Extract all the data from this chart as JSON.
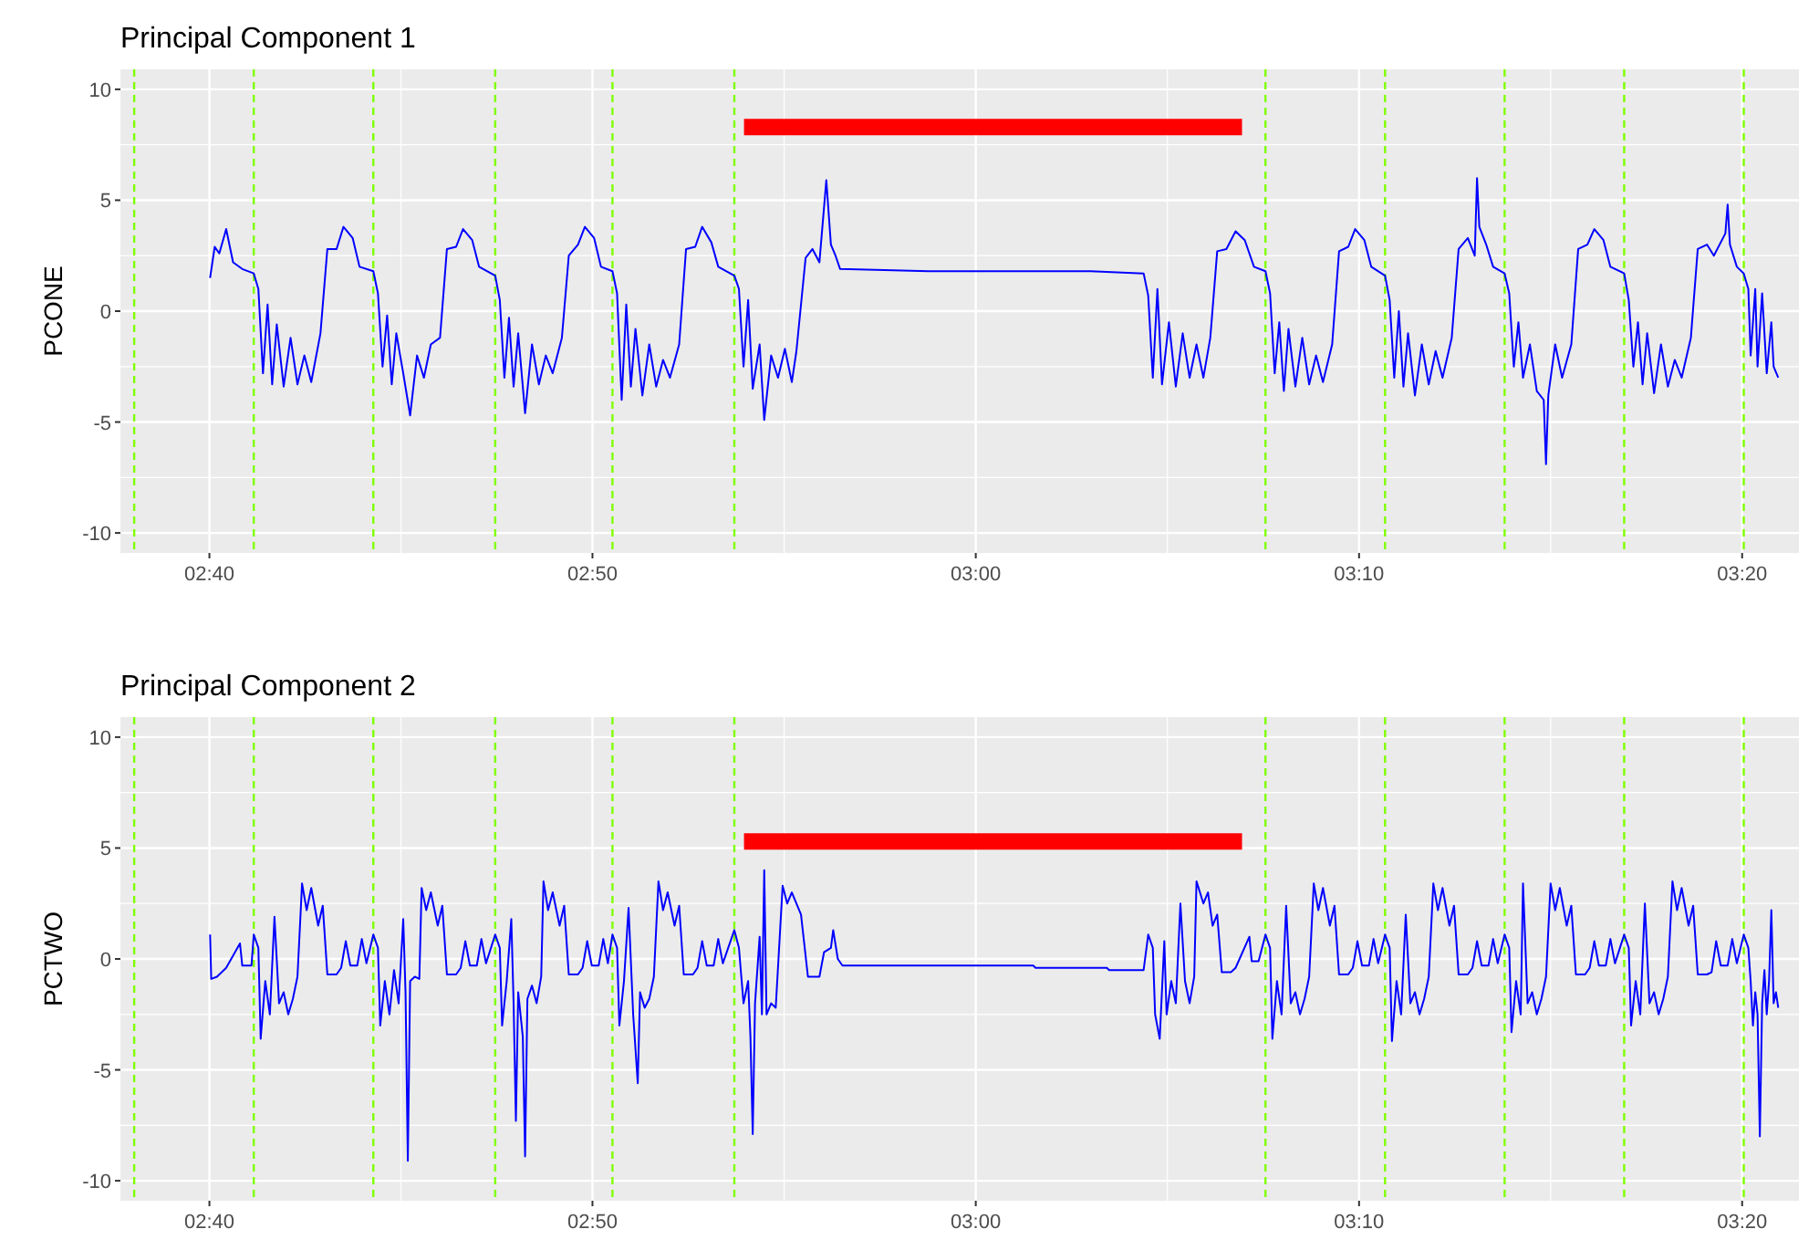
{
  "chart_data": [
    {
      "type": "line",
      "title": "Principal Component 1",
      "ylabel": "PCONE",
      "xlim": [
        2.628,
        3.358
      ],
      "ylim": [
        -10.9,
        10.9
      ],
      "xticks": [
        {
          "value": 2.6667,
          "label": "02:40"
        },
        {
          "value": 2.8333,
          "label": "02:50"
        },
        {
          "value": 3,
          "label": "03:00"
        },
        {
          "value": 3.1667,
          "label": "03:10"
        },
        {
          "value": 3.3333,
          "label": "03:20"
        }
      ],
      "yticks": [
        -10,
        -5,
        0,
        5,
        10
      ],
      "grid": true,
      "ref_lines": [
        {
          "axis": "x",
          "value": 2.634,
          "color": "#7fff00",
          "line_style": "dashed"
        },
        {
          "axis": "x",
          "value": 2.686,
          "color": "#7fff00",
          "line_style": "dashed"
        },
        {
          "axis": "x",
          "value": 2.738,
          "color": "#7fff00",
          "line_style": "dashed"
        },
        {
          "axis": "x",
          "value": 2.791,
          "color": "#7fff00",
          "line_style": "dashed"
        },
        {
          "axis": "x",
          "value": 2.842,
          "color": "#7fff00",
          "line_style": "dashed"
        },
        {
          "axis": "x",
          "value": 2.895,
          "color": "#7fff00",
          "line_style": "dashed"
        },
        {
          "axis": "x",
          "value": 3.126,
          "color": "#7fff00",
          "line_style": "dashed"
        },
        {
          "axis": "x",
          "value": 3.178,
          "color": "#7fff00",
          "line_style": "dashed"
        },
        {
          "axis": "x",
          "value": 3.23,
          "color": "#7fff00",
          "line_style": "dashed"
        },
        {
          "axis": "x",
          "value": 3.282,
          "color": "#7fff00",
          "line_style": "dashed"
        },
        {
          "axis": "x",
          "value": 3.334,
          "color": "#7fff00",
          "line_style": "dashed"
        }
      ],
      "series": [
        {
          "type": "line",
          "color": "#0000ff",
          "x": [
            2.667,
            2.669,
            2.671,
            2.674,
            2.677,
            2.681,
            2.686,
            2.688,
            2.69,
            2.692,
            2.694,
            2.696,
            2.699,
            2.702,
            2.705,
            2.708,
            2.711,
            2.715,
            2.718,
            2.722,
            2.725,
            2.729,
            2.732,
            2.738,
            2.74,
            2.742,
            2.744,
            2.746,
            2.748,
            2.751,
            2.754,
            2.757,
            2.76,
            2.763,
            2.767,
            2.77,
            2.774,
            2.777,
            2.781,
            2.784,
            2.791,
            2.793,
            2.795,
            2.797,
            2.799,
            2.801,
            2.804,
            2.807,
            2.81,
            2.813,
            2.816,
            2.82,
            2.823,
            2.827,
            2.83,
            2.834,
            2.837,
            2.842,
            2.844,
            2.846,
            2.848,
            2.85,
            2.852,
            2.855,
            2.858,
            2.861,
            2.864,
            2.867,
            2.871,
            2.874,
            2.878,
            2.881,
            2.885,
            2.888,
            2.895,
            2.897,
            2.899,
            2.901,
            2.903,
            2.906,
            2.908,
            2.911,
            2.914,
            2.917,
            2.92,
            2.922,
            2.926,
            2.929,
            2.932,
            2.935,
            2.937,
            2.939,
            2.941,
            2.98,
            3.02,
            3.05,
            3.073,
            3.075,
            3.077,
            3.079,
            3.081,
            3.084,
            3.087,
            3.09,
            3.093,
            3.096,
            3.099,
            3.102,
            3.105,
            3.109,
            3.113,
            3.117,
            3.121,
            3.126,
            3.128,
            3.13,
            3.132,
            3.134,
            3.136,
            3.139,
            3.142,
            3.145,
            3.148,
            3.151,
            3.155,
            3.158,
            3.162,
            3.165,
            3.169,
            3.172,
            3.178,
            3.18,
            3.182,
            3.184,
            3.186,
            3.188,
            3.191,
            3.194,
            3.197,
            3.2,
            3.203,
            3.207,
            3.21,
            3.214,
            3.217,
            3.218,
            3.219,
            3.222,
            3.225,
            3.23,
            3.232,
            3.234,
            3.236,
            3.238,
            3.241,
            3.244,
            3.247,
            3.248,
            3.249,
            3.252,
            3.255,
            3.259,
            3.262,
            3.266,
            3.269,
            3.273,
            3.276,
            3.282,
            3.284,
            3.286,
            3.288,
            3.29,
            3.292,
            3.295,
            3.298,
            3.301,
            3.304,
            3.307,
            3.311,
            3.314,
            3.318,
            3.321,
            3.326,
            3.327,
            3.328,
            3.331,
            3.334,
            3.336,
            3.337,
            3.339,
            3.34,
            3.342,
            3.344,
            3.346,
            3.347,
            3.349
          ],
          "values": [
            1.5,
            2.9,
            2.6,
            3.7,
            2.2,
            1.9,
            1.7,
            1.0,
            -2.8,
            0.3,
            -3.3,
            -0.6,
            -3.4,
            -1.2,
            -3.3,
            -2.0,
            -3.2,
            -1.0,
            2.8,
            2.8,
            3.8,
            3.3,
            2.0,
            1.8,
            0.8,
            -2.5,
            -0.2,
            -3.3,
            -1.0,
            -2.8,
            -4.7,
            -2.0,
            -3.0,
            -1.5,
            -1.2,
            2.8,
            2.9,
            3.7,
            3.2,
            2.0,
            1.6,
            0.5,
            -3.0,
            -0.3,
            -3.4,
            -1.0,
            -4.6,
            -1.5,
            -3.3,
            -2.0,
            -2.8,
            -1.2,
            2.5,
            3.0,
            3.8,
            3.3,
            2.0,
            1.8,
            0.8,
            -4.0,
            0.3,
            -3.4,
            -0.8,
            -3.8,
            -1.5,
            -3.4,
            -2.2,
            -3.0,
            -1.5,
            2.8,
            2.9,
            3.8,
            3.1,
            2.0,
            1.6,
            1.0,
            -2.5,
            0.5,
            -3.5,
            -1.5,
            -4.9,
            -2.0,
            -3.0,
            -1.7,
            -3.2,
            -1.8,
            2.4,
            2.8,
            2.2,
            5.9,
            3.0,
            2.5,
            1.9,
            1.8,
            1.8,
            1.8,
            1.7,
            0.7,
            -3.0,
            1.0,
            -3.3,
            -0.5,
            -3.4,
            -1.0,
            -3.0,
            -1.5,
            -3.0,
            -1.2,
            2.7,
            2.8,
            3.6,
            3.2,
            2.0,
            1.8,
            0.8,
            -2.8,
            -0.5,
            -3.6,
            -0.8,
            -3.4,
            -1.2,
            -3.3,
            -2.0,
            -3.2,
            -1.5,
            2.7,
            2.9,
            3.7,
            3.2,
            2.0,
            1.6,
            0.5,
            -3.0,
            0.0,
            -3.4,
            -1.0,
            -3.8,
            -1.5,
            -3.3,
            -1.8,
            -3.0,
            -1.2,
            2.8,
            3.3,
            2.5,
            6.0,
            3.8,
            3.0,
            2.0,
            1.7,
            0.8,
            -2.5,
            -0.5,
            -3.0,
            -1.5,
            -3.6,
            -4.0,
            -6.9,
            -3.8,
            -1.5,
            -3.0,
            -1.5,
            2.8,
            3.0,
            3.7,
            3.2,
            2.0,
            1.7,
            0.5,
            -2.5,
            -0.5,
            -3.3,
            -1.0,
            -3.7,
            -1.5,
            -3.4,
            -2.2,
            -3.0,
            -1.2,
            2.8,
            3.0,
            2.5,
            3.5,
            4.8,
            3.0,
            2.0,
            1.7,
            1.0,
            -2.0,
            1.0,
            -2.5,
            0.8,
            -2.8,
            -0.5,
            -2.5,
            -3.0
          ]
        },
        {
          "type": "line",
          "color": "#ff0000",
          "x": [
            2.8992,
            3.1158
          ],
          "values": [
            8.3,
            8.3
          ]
        }
      ]
    },
    {
      "type": "line",
      "title": "Principal Component 2",
      "ylabel": "PCTWO",
      "xlim": [
        2.628,
        3.358
      ],
      "ylim": [
        -10.9,
        10.9
      ],
      "xticks": [
        {
          "value": 2.6667,
          "label": "02:40"
        },
        {
          "value": 2.8333,
          "label": "02:50"
        },
        {
          "value": 3,
          "label": "03:00"
        },
        {
          "value": 3.1667,
          "label": "03:10"
        },
        {
          "value": 3.3333,
          "label": "03:20"
        }
      ],
      "yticks": [
        -10,
        -5,
        0,
        5,
        10
      ],
      "grid": true,
      "ref_lines": [
        {
          "axis": "x",
          "value": 2.634,
          "color": "#7fff00",
          "line_style": "dashed"
        },
        {
          "axis": "x",
          "value": 2.686,
          "color": "#7fff00",
          "line_style": "dashed"
        },
        {
          "axis": "x",
          "value": 2.738,
          "color": "#7fff00",
          "line_style": "dashed"
        },
        {
          "axis": "x",
          "value": 2.791,
          "color": "#7fff00",
          "line_style": "dashed"
        },
        {
          "axis": "x",
          "value": 2.842,
          "color": "#7fff00",
          "line_style": "dashed"
        },
        {
          "axis": "x",
          "value": 2.895,
          "color": "#7fff00",
          "line_style": "dashed"
        },
        {
          "axis": "x",
          "value": 3.126,
          "color": "#7fff00",
          "line_style": "dashed"
        },
        {
          "axis": "x",
          "value": 3.178,
          "color": "#7fff00",
          "line_style": "dashed"
        },
        {
          "axis": "x",
          "value": 3.23,
          "color": "#7fff00",
          "line_style": "dashed"
        },
        {
          "axis": "x",
          "value": 3.282,
          "color": "#7fff00",
          "line_style": "dashed"
        },
        {
          "axis": "x",
          "value": 3.334,
          "color": "#7fff00",
          "line_style": "dashed"
        }
      ],
      "series": [
        {
          "type": "line",
          "color": "#0000ff",
          "x": [
            2.667,
            2.6675,
            2.67,
            2.674,
            2.68,
            2.681,
            2.685,
            2.686,
            2.688,
            2.689,
            2.691,
            2.693,
            2.695,
            2.697,
            2.699,
            2.701,
            2.703,
            2.705,
            2.707,
            2.709,
            2.711,
            2.714,
            2.716,
            2.718,
            2.722,
            2.724,
            2.726,
            2.728,
            2.731,
            2.733,
            2.735,
            2.738,
            2.74,
            2.741,
            2.743,
            2.745,
            2.747,
            2.749,
            2.751,
            2.752,
            2.753,
            2.754,
            2.756,
            2.758,
            2.759,
            2.761,
            2.763,
            2.766,
            2.768,
            2.77,
            2.774,
            2.776,
            2.778,
            2.78,
            2.783,
            2.785,
            2.787,
            2.791,
            2.793,
            2.794,
            2.796,
            2.798,
            2.799,
            2.8,
            2.801,
            2.803,
            2.804,
            2.805,
            2.807,
            2.809,
            2.811,
            2.812,
            2.814,
            2.816,
            2.819,
            2.821,
            2.823,
            2.827,
            2.829,
            2.831,
            2.833,
            2.836,
            2.838,
            2.84,
            2.842,
            2.844,
            2.845,
            2.847,
            2.849,
            2.851,
            2.853,
            2.854,
            2.856,
            2.858,
            2.86,
            2.862,
            2.864,
            2.866,
            2.869,
            2.871,
            2.873,
            2.877,
            2.879,
            2.881,
            2.883,
            2.886,
            2.888,
            2.89,
            2.895,
            2.897,
            2.899,
            2.901,
            2.902,
            2.903,
            2.904,
            2.906,
            2.907,
            2.908,
            2.909,
            2.911,
            2.913,
            2.916,
            2.918,
            2.92,
            2.924,
            2.927,
            2.932,
            2.934,
            2.937,
            2.938,
            2.94,
            2.942,
            2.99,
            3.025,
            3.026,
            3.057,
            3.058,
            3.073,
            3.075,
            3.077,
            3.078,
            3.08,
            3.082,
            3.083,
            3.085,
            3.087,
            3.089,
            3.091,
            3.093,
            3.095,
            3.096,
            3.099,
            3.101,
            3.103,
            3.105,
            3.107,
            3.111,
            3.113,
            3.119,
            3.12,
            3.123,
            3.126,
            3.128,
            3.129,
            3.131,
            3.133,
            3.135,
            3.137,
            3.139,
            3.141,
            3.143,
            3.145,
            3.147,
            3.149,
            3.151,
            3.154,
            3.156,
            3.158,
            3.162,
            3.164,
            3.166,
            3.168,
            3.171,
            3.173,
            3.175,
            3.178,
            3.18,
            3.181,
            3.183,
            3.185,
            3.187,
            3.189,
            3.191,
            3.193,
            3.195,
            3.197,
            3.199,
            3.201,
            3.203,
            3.206,
            3.208,
            3.21,
            3.214,
            3.216,
            3.218,
            3.22,
            3.223,
            3.225,
            3.227,
            3.23,
            3.232,
            3.233,
            3.235,
            3.237,
            3.238,
            3.24,
            3.242,
            3.244,
            3.246,
            3.248,
            3.25,
            3.252,
            3.254,
            3.257,
            3.259,
            3.261,
            3.265,
            3.267,
            3.269,
            3.271,
            3.274,
            3.276,
            3.278,
            3.282,
            3.284,
            3.285,
            3.287,
            3.289,
            3.291,
            3.293,
            3.295,
            3.297,
            3.299,
            3.301,
            3.303,
            3.305,
            3.307,
            3.31,
            3.312,
            3.314,
            3.318,
            3.32,
            3.322,
            3.324,
            3.327,
            3.329,
            3.331,
            3.334,
            3.336,
            3.337,
            3.338,
            3.339,
            3.34,
            3.341,
            3.342,
            3.343,
            3.344,
            3.345,
            3.346,
            3.347,
            3.348,
            3.349
          ],
          "values": [
            1.1,
            -0.9,
            -0.8,
            -0.4,
            0.7,
            -0.3,
            -0.3,
            1.1,
            0.5,
            -3.6,
            -1.0,
            -2.5,
            1.9,
            -2.0,
            -1.5,
            -2.5,
            -1.8,
            -0.8,
            3.4,
            2.2,
            3.2,
            1.5,
            2.4,
            -0.7,
            -0.7,
            -0.4,
            0.8,
            -0.3,
            -0.3,
            0.9,
            -0.2,
            1.1,
            0.5,
            -3.0,
            -1.0,
            -2.5,
            -0.5,
            -2.0,
            1.8,
            -1.5,
            -9.1,
            -1.0,
            -0.8,
            -0.9,
            3.2,
            2.2,
            3.0,
            1.5,
            2.4,
            -0.7,
            -0.7,
            -0.4,
            0.8,
            -0.3,
            -0.3,
            0.9,
            -0.2,
            1.1,
            0.5,
            -3.0,
            -1.0,
            1.8,
            -2.0,
            -7.3,
            -1.5,
            -3.5,
            -8.9,
            -1.8,
            -1.2,
            -2.0,
            -0.8,
            3.5,
            2.2,
            3.0,
            1.5,
            2.4,
            -0.7,
            -0.7,
            -0.4,
            0.8,
            -0.3,
            -0.3,
            0.9,
            -0.2,
            1.1,
            0.5,
            -3.0,
            -1.0,
            2.3,
            -2.5,
            -5.6,
            -1.5,
            -2.2,
            -1.8,
            -0.8,
            3.5,
            2.2,
            3.0,
            1.5,
            2.4,
            -0.7,
            -0.7,
            -0.4,
            0.8,
            -0.3,
            -0.3,
            0.9,
            -0.2,
            1.3,
            0.5,
            -2.0,
            -1.0,
            -3.5,
            -7.9,
            -2.0,
            1.0,
            -2.5,
            4.0,
            -2.5,
            -2.0,
            -2.2,
            3.3,
            2.5,
            3.0,
            2.0,
            -0.8,
            -0.8,
            0.3,
            0.5,
            1.3,
            0.0,
            -0.3,
            -0.3,
            -0.3,
            -0.4,
            -0.4,
            -0.5,
            -0.5,
            1.1,
            0.5,
            -2.5,
            -3.6,
            0.8,
            -2.5,
            -1.0,
            -2.0,
            2.5,
            -1.0,
            -2.0,
            -0.8,
            3.5,
            2.5,
            3.0,
            1.5,
            2.0,
            -0.6,
            -0.6,
            -0.4,
            1.0,
            -0.1,
            -0.1,
            1.1,
            0.5,
            -3.6,
            -1.0,
            -2.5,
            2.4,
            -2.0,
            -1.5,
            -2.5,
            -1.8,
            -0.8,
            3.4,
            2.2,
            3.2,
            1.5,
            2.4,
            -0.7,
            -0.7,
            -0.4,
            0.8,
            -0.3,
            -0.3,
            0.9,
            -0.2,
            1.1,
            0.5,
            -3.7,
            -1.0,
            -2.5,
            2.0,
            -2.0,
            -1.5,
            -2.5,
            -1.8,
            -0.8,
            3.4,
            2.2,
            3.2,
            1.5,
            2.4,
            -0.7,
            -0.7,
            -0.4,
            0.8,
            -0.3,
            -0.3,
            0.9,
            -0.2,
            1.1,
            0.5,
            -3.3,
            -1.0,
            -2.5,
            3.4,
            -2.0,
            -1.5,
            -2.5,
            -1.8,
            -0.8,
            3.4,
            2.2,
            3.2,
            1.5,
            2.4,
            -0.7,
            -0.7,
            -0.4,
            0.8,
            -0.3,
            -0.3,
            0.9,
            -0.2,
            1.1,
            0.5,
            -3.0,
            -1.0,
            -2.5,
            2.5,
            -2.0,
            -1.5,
            -2.5,
            -1.8,
            -0.8,
            3.5,
            2.2,
            3.2,
            1.5,
            2.4,
            -0.7,
            -0.7,
            -0.6,
            0.8,
            -0.3,
            -0.3,
            0.9,
            -0.2,
            1.1,
            0.5,
            -1.0,
            -3.0,
            -1.5,
            -2.5,
            -8.0,
            -2.0,
            -0.5,
            -2.5,
            -1.0,
            2.2,
            -2.0,
            -1.5,
            -2.2
          ]
        },
        {
          "type": "line",
          "color": "#ff0000",
          "x": [
            2.8992,
            3.1158
          ],
          "values": [
            5.3,
            5.3
          ]
        }
      ]
    }
  ]
}
